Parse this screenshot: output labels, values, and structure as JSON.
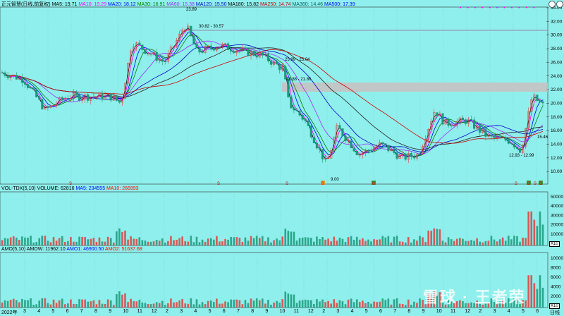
{
  "main_header": {
    "stock_name": "正元智慧(日线,前复权)",
    "ma_items": [
      {
        "label": "MA5: 19.71",
        "color": "#000000"
      },
      {
        "label": "MA10: 19.29",
        "color": "#ff00ff"
      },
      {
        "label": "MA20: 18.12",
        "color": "#0000ff"
      },
      {
        "label": "MA30: 16.91",
        "color": "#008000"
      },
      {
        "label": "MA60: 15.38",
        "color": "#9b30ff"
      },
      {
        "label": "MA120: 15.50",
        "color": "#0000cc"
      },
      {
        "label": "MA180: 15.82",
        "color": "#000000"
      },
      {
        "label": "MA250: 14.74",
        "color": "#cc0000"
      },
      {
        "label": "MA360: 14.46",
        "color": "#006666"
      },
      {
        "label": "MA500: 17.39",
        "color": "#0000ff"
      }
    ]
  },
  "volume_header": {
    "items": [
      {
        "label": "VOL-TDX(5,10)",
        "color": "#000000"
      },
      {
        "label": "VOLUME: 62816",
        "color": "#000000"
      },
      {
        "label": "MA5: 234555",
        "color": "#0000ff"
      },
      {
        "label": "MA10: 266993",
        "color": "#ff0000"
      }
    ]
  },
  "amo_header": {
    "items": [
      {
        "label": "AMO(5,10)",
        "color": "#000000"
      },
      {
        "label": "AMOW: 11962.10",
        "color": "#000000"
      },
      {
        "label": "AMO1: 46900.50",
        "color": "#0000ff"
      },
      {
        "label": "AMO2: 51637.68",
        "color": "#ff0000"
      }
    ]
  },
  "price_axis": [
    "34.00",
    "32.00",
    "30.00",
    "28.00",
    "26.00",
    "24.00",
    "22.00",
    "20.00",
    "18.00",
    "16.00",
    "14.00",
    "12.00",
    "10.00"
  ],
  "volume_axis": [
    "50000",
    "40000",
    "30000",
    "20000",
    "10000"
  ],
  "amo_axis": [
    "10000",
    "8000",
    "6000",
    "4000",
    "2000"
  ],
  "unit_label": "X10",
  "annotations": {
    "high": "23.89",
    "low": "9.00",
    "range1": "30.82 - 30.57",
    "range2": "25.99 - 25.04",
    "range3": "23.88 - 21.86",
    "range4": "12.93 - 12.99",
    "last": "15.46"
  },
  "x_axis": {
    "year": "2022年",
    "months": [
      "3",
      "4",
      "5",
      "6",
      "7",
      "8",
      "9",
      "10",
      "11",
      "12",
      "2",
      "3",
      "4",
      "5",
      "6",
      "7",
      "8",
      "9",
      "10",
      "11",
      "12",
      "2",
      "3",
      "4",
      "5",
      "6",
      "7",
      "8",
      "9",
      "10",
      "11",
      "12",
      "2",
      "3",
      "4",
      "5",
      "6"
    ],
    "period": "日线"
  },
  "markers": [
    "S",
    "S",
    "S",
    "B",
    "B",
    "S",
    "B",
    "S",
    "B"
  ],
  "watermark": "雪球 · 王者荣"
}
